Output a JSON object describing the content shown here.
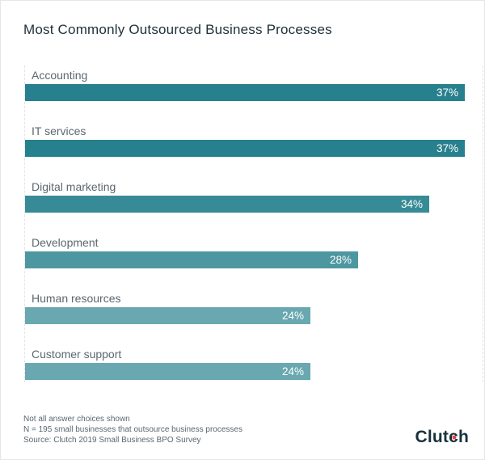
{
  "header": {
    "title": "Most Commonly Outsourced Business Processes"
  },
  "chart_data": {
    "type": "bar",
    "orientation": "horizontal",
    "title": "Most Commonly Outsourced Business Processes",
    "categories": [
      "Accounting",
      "IT services",
      "Digital marketing",
      "Development",
      "Human resources",
      "Customer support"
    ],
    "values": [
      37,
      37,
      34,
      28,
      24,
      24
    ],
    "value_labels": [
      "37%",
      "37%",
      "34%",
      "28%",
      "24%",
      "24%"
    ],
    "unit": "percent",
    "xlim": [
      0,
      38.8
    ],
    "grid": "dashed-plot-edges-only",
    "legend": "none",
    "bar_colors": [
      "#27808d",
      "#27808d",
      "#378b96",
      "#4d97a1",
      "#69a8b0",
      "#69a8b0"
    ],
    "value_label_color": "#ffffff",
    "category_label_color": "#5b6770"
  },
  "footer": {
    "notes": [
      "Not all answer choices shown",
      "N = 195 small businesses that outsource business processes",
      "Source: Clutch 2019 Small Business BPO Survey"
    ],
    "logo_prefix": "Clut",
    "logo_c": "c",
    "logo_suffix": "h"
  },
  "colors": {
    "title_text": "#1d2f39",
    "logo_text": "#16313d",
    "logo_dot": "#e8453c",
    "frame_border": "#e4e7e9"
  }
}
